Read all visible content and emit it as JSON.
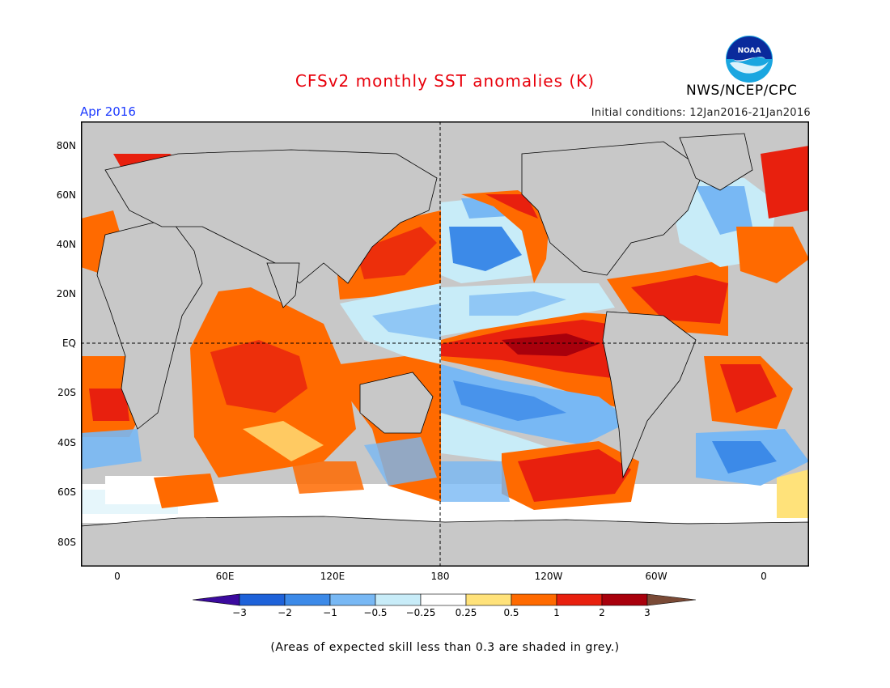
{
  "header": {
    "title": "CFSv2 monthly SST anomalies (K)",
    "period": "Apr 2016",
    "initial_conditions": "Initial conditions: 12Jan2016-21Jan2016",
    "agency": "NWS/NCEP/CPC",
    "logo_text": "NOAA"
  },
  "colors": {
    "title": "#e8000b",
    "period": "#1e3cff",
    "land": "#c8c8c8",
    "grey_skill": "#c0c0c0",
    "levels": [
      "#3b0a9e",
      "#1e62d9",
      "#3c8ae8",
      "#78b8f4",
      "#c8ecf8",
      "#ffffff",
      "#ffe27a",
      "#ff6a00",
      "#e8200e",
      "#a8000c",
      "#7a4a36"
    ]
  },
  "map": {
    "lat_labels": [
      "80N",
      "60N",
      "40N",
      "20N",
      "EQ",
      "20S",
      "40S",
      "60S",
      "80S"
    ],
    "lon_labels": [
      "0",
      "60E",
      "120E",
      "180",
      "120W",
      "60W",
      "0"
    ]
  },
  "colorbar": {
    "labels": [
      "−3",
      "−2",
      "−1",
      "−0.5",
      "−0.25",
      "0.25",
      "0.5",
      "1",
      "2",
      "3"
    ]
  },
  "footnote": "(Areas of expected skill less than 0.3 are shaded in grey.)"
}
